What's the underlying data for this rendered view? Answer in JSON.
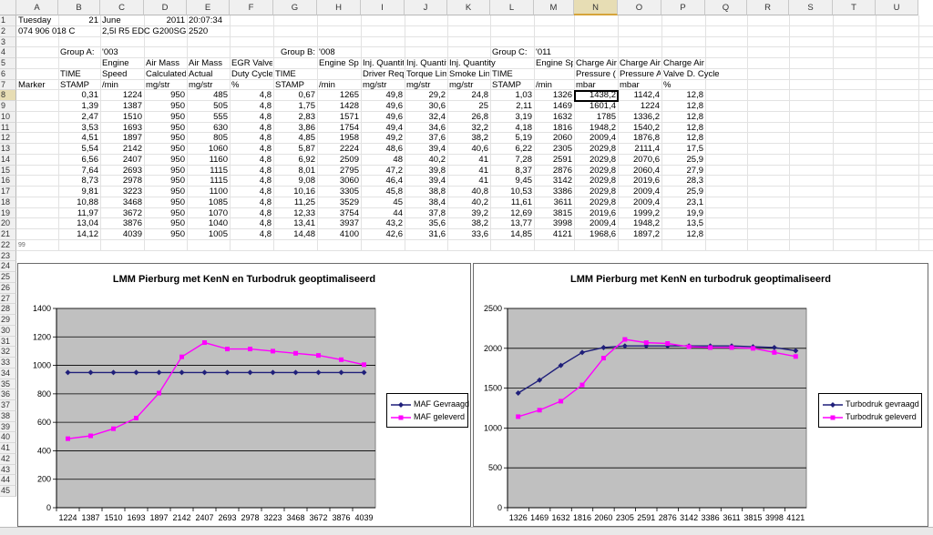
{
  "sheet": {
    "columns": [
      "A",
      "B",
      "C",
      "D",
      "E",
      "F",
      "G",
      "H",
      "I",
      "J",
      "K",
      "L",
      "M",
      "N",
      "O",
      "P",
      "Q",
      "R",
      "S",
      "T",
      "U"
    ],
    "selected_column": "N",
    "selected_row": 8,
    "rows": [
      "1",
      "2",
      "3",
      "4",
      "5",
      "6",
      "7",
      "8",
      "9",
      "10",
      "11",
      "12",
      "13",
      "14",
      "15",
      "16",
      "17",
      "18",
      "19",
      "20",
      "21",
      "22",
      "23",
      "24",
      "25",
      "26",
      "27",
      "28",
      "29",
      "30",
      "31",
      "32",
      "33",
      "34",
      "35",
      "36",
      "37",
      "38",
      "39",
      "40",
      "41",
      "42",
      "43",
      "44",
      "45"
    ],
    "row1": {
      "day": "Tuesday",
      "date_day": "21",
      "month": "June",
      "year": "2011",
      "time": "20:07:34"
    },
    "row2": {
      "part": "074 906 018 C",
      "engine": "2,5l R5 EDC G200SG",
      "code": "2520"
    },
    "group_a": {
      "label": "Group A:",
      "id": "'003"
    },
    "group_b": {
      "label": "Group B:",
      "id": "'008"
    },
    "group_c": {
      "label": "Group C:",
      "id": "'011"
    },
    "row5": {
      "c": "Engine",
      "d": "Air Mass",
      "e": "Air Mass",
      "f": "EGR Valve",
      "h": "Engine Sp",
      "i": "Inj. Quantit",
      "j": "Inj. Quantit",
      "k": "Inj. Quantity",
      "m": "Engine Sp",
      "n": "Charge Air",
      "o": "Charge Air",
      "p": "Charge Air"
    },
    "row6": {
      "b": "TIME",
      "c": "Speed",
      "d": "Calculated",
      "e": "Actual",
      "f": "Duty Cycle",
      "g": "TIME",
      "i": "Driver Req",
      "j": "Torque Lim",
      "k": "Smoke Lin",
      "l": "TIME",
      "n": "Pressure (",
      "o": "Pressure A",
      "p": "Valve D. Cycle"
    },
    "row7": {
      "a": "Marker",
      "b": "STAMP",
      "c": "/min",
      "d": "mg/str",
      "e": "mg/str",
      "f": "%",
      "g": "STAMP",
      "h": "/min",
      "i": "mg/str",
      "j": "mg/str",
      "k": "mg/str",
      "l": "STAMP",
      "m": "/min",
      "n": "mbar",
      "o": "mbar",
      "p": "%"
    },
    "data_rows": [
      [
        "0,31",
        "1224",
        "950",
        "485",
        "4,8",
        "0,67",
        "1265",
        "49,8",
        "29,2",
        "24,8",
        "1,03",
        "1326",
        "1438,2",
        "1142,4",
        "12,8"
      ],
      [
        "1,39",
        "1387",
        "950",
        "505",
        "4,8",
        "1,75",
        "1428",
        "49,6",
        "30,6",
        "25",
        "2,11",
        "1469",
        "1601,4",
        "1224",
        "12,8"
      ],
      [
        "2,47",
        "1510",
        "950",
        "555",
        "4,8",
        "2,83",
        "1571",
        "49,6",
        "32,4",
        "26,8",
        "3,19",
        "1632",
        "1785",
        "1336,2",
        "12,8"
      ],
      [
        "3,53",
        "1693",
        "950",
        "630",
        "4,8",
        "3,86",
        "1754",
        "49,4",
        "34,6",
        "32,2",
        "4,18",
        "1816",
        "1948,2",
        "1540,2",
        "12,8"
      ],
      [
        "4,51",
        "1897",
        "950",
        "805",
        "4,8",
        "4,85",
        "1958",
        "49,2",
        "37,6",
        "38,2",
        "5,19",
        "2060",
        "2009,4",
        "1876,8",
        "12,8"
      ],
      [
        "5,54",
        "2142",
        "950",
        "1060",
        "4,8",
        "5,87",
        "2224",
        "48,6",
        "39,4",
        "40,6",
        "6,22",
        "2305",
        "2029,8",
        "2111,4",
        "17,5"
      ],
      [
        "6,56",
        "2407",
        "950",
        "1160",
        "4,8",
        "6,92",
        "2509",
        "48",
        "40,2",
        "41",
        "7,28",
        "2591",
        "2029,8",
        "2070,6",
        "25,9"
      ],
      [
        "7,64",
        "2693",
        "950",
        "1115",
        "4,8",
        "8,01",
        "2795",
        "47,2",
        "39,8",
        "41",
        "8,37",
        "2876",
        "2029,8",
        "2060,4",
        "27,9"
      ],
      [
        "8,73",
        "2978",
        "950",
        "1115",
        "4,8",
        "9,08",
        "3060",
        "46,4",
        "39,4",
        "41",
        "9,45",
        "3142",
        "2029,8",
        "2019,6",
        "28,3"
      ],
      [
        "9,81",
        "3223",
        "950",
        "1100",
        "4,8",
        "10,16",
        "3305",
        "45,8",
        "38,8",
        "40,8",
        "10,53",
        "3386",
        "2029,8",
        "2009,4",
        "25,9"
      ],
      [
        "10,88",
        "3468",
        "950",
        "1085",
        "4,8",
        "11,25",
        "3529",
        "45",
        "38,4",
        "40,2",
        "11,61",
        "3611",
        "2029,8",
        "2009,4",
        "23,1"
      ],
      [
        "11,97",
        "3672",
        "950",
        "1070",
        "4,8",
        "12,33",
        "3754",
        "44",
        "37,8",
        "39,2",
        "12,69",
        "3815",
        "2019,6",
        "1999,2",
        "19,9"
      ],
      [
        "13,04",
        "3876",
        "950",
        "1040",
        "4,8",
        "13,41",
        "3937",
        "43,2",
        "35,6",
        "38,2",
        "13,77",
        "3998",
        "2009,4",
        "1948,2",
        "13,5"
      ],
      [
        "14,12",
        "4039",
        "950",
        "1005",
        "4,8",
        "14,48",
        "4100",
        "42,6",
        "31,6",
        "33,6",
        "14,85",
        "4121",
        "1968,6",
        "1897,2",
        "12,8"
      ]
    ],
    "row22_note": "99"
  },
  "colors": {
    "series_set": "#1f1f7a",
    "series_actual": "#ff00ff",
    "plot_bg": "#c0c0c0"
  },
  "chart_data": [
    {
      "type": "line",
      "title": "LMM Pierburg met KenN en Turbodruk geoptimaliseerd",
      "categories": [
        "1224",
        "1387",
        "1510",
        "1693",
        "1897",
        "2142",
        "2407",
        "2693",
        "2978",
        "3223",
        "3468",
        "3672",
        "3876",
        "4039"
      ],
      "series": [
        {
          "name": "MAF Gevraagd",
          "values": [
            950,
            950,
            950,
            950,
            950,
            950,
            950,
            950,
            950,
            950,
            950,
            950,
            950,
            950
          ]
        },
        {
          "name": "MAF geleverd",
          "values": [
            485,
            505,
            555,
            630,
            805,
            1060,
            1160,
            1115,
            1115,
            1100,
            1085,
            1070,
            1040,
            1005
          ]
        }
      ],
      "ylim": [
        0,
        1400
      ],
      "yticks": [
        "0",
        "200",
        "400",
        "600",
        "800",
        "1000",
        "1200",
        "1400"
      ],
      "grid": true,
      "legend": "right"
    },
    {
      "type": "line",
      "title": "LMM Pierburg met KenN en turbodruk geoptimaliseerd",
      "categories": [
        "1326",
        "1469",
        "1632",
        "1816",
        "2060",
        "2305",
        "2591",
        "2876",
        "3142",
        "3386",
        "3611",
        "3815",
        "3998",
        "4121"
      ],
      "series": [
        {
          "name": "Turbodruk gevraagd",
          "values": [
            1438.2,
            1601.4,
            1785,
            1948.2,
            2009.4,
            2029.8,
            2029.8,
            2029.8,
            2029.8,
            2029.8,
            2029.8,
            2019.6,
            2009.4,
            1968.6
          ]
        },
        {
          "name": "Turbodruk geleverd",
          "values": [
            1142.4,
            1224,
            1336.2,
            1540.2,
            1876.8,
            2111.4,
            2070.6,
            2060.4,
            2019.6,
            2009.4,
            2009.4,
            1999.2,
            1948.2,
            1897.2
          ]
        }
      ],
      "ylim": [
        0,
        2500
      ],
      "yticks": [
        "0",
        "500",
        "1000",
        "1500",
        "2000",
        "2500"
      ],
      "grid": true,
      "legend": "right"
    }
  ]
}
